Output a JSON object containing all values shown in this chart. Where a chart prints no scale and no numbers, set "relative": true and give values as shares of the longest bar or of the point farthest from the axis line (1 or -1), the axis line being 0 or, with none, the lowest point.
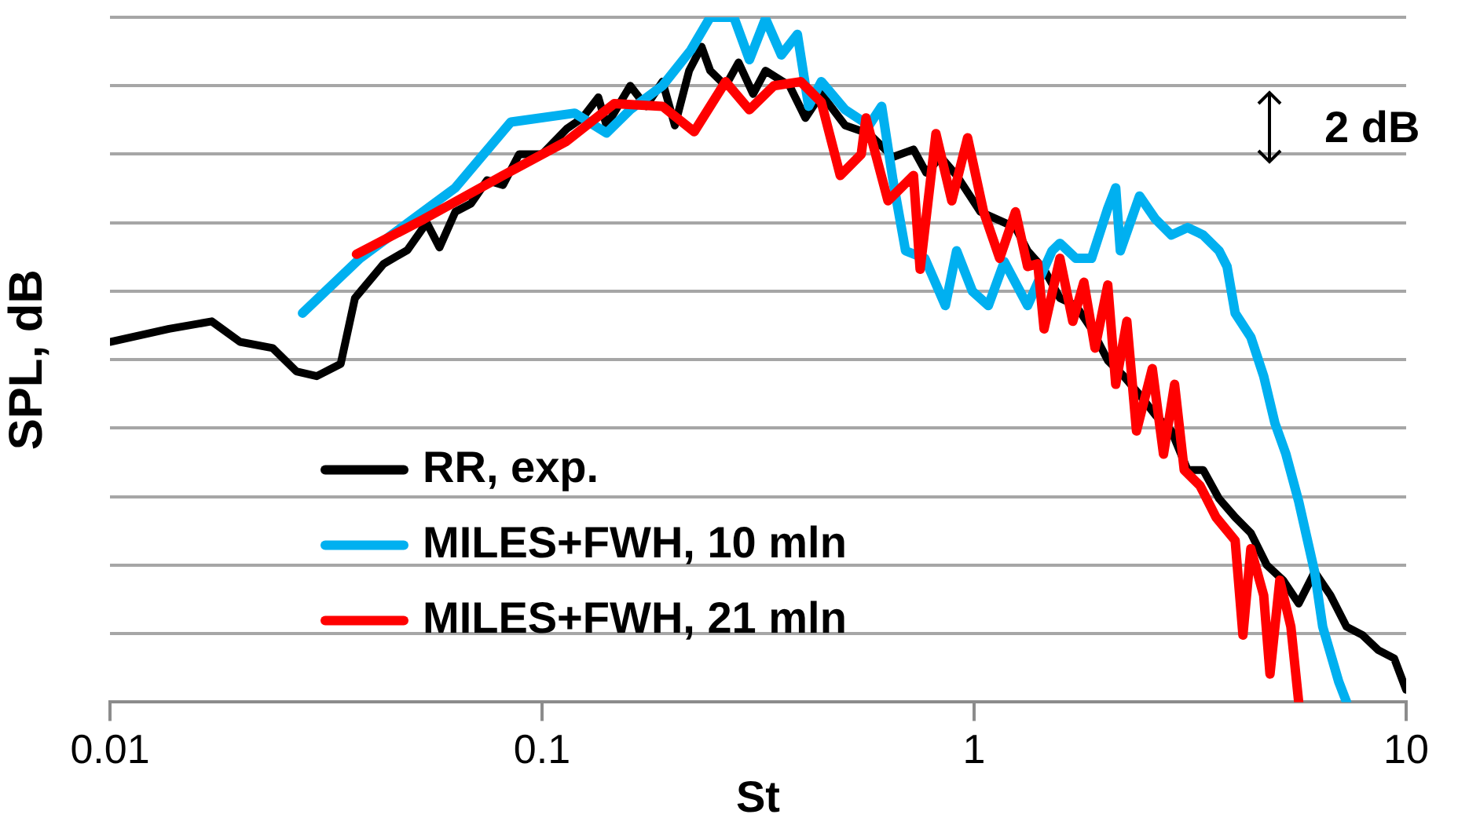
{
  "chart_data": {
    "type": "line",
    "xlabel": "St",
    "ylabel": "SPL, dB",
    "relative": true,
    "log": "x",
    "xlim": [
      0.01,
      10
    ],
    "xticks": [
      0.01,
      0.1,
      1,
      10
    ],
    "grid": "y",
    "legend": "bottom left",
    "marker": "none",
    "line_style": "solid",
    "annotations": [
      "2 dB"
    ],
    "series": [
      {
        "name": "RR, exp.",
        "color": "#000000",
        "x": [
          0.01,
          0.0137,
          0.0172,
          0.02,
          0.0238,
          0.027,
          0.0301,
          0.0342,
          0.0369,
          0.043,
          0.0488,
          0.0541,
          0.0579,
          0.063,
          0.0685,
          0.0746,
          0.0812,
          0.0885,
          0.1,
          0.114,
          0.124,
          0.135,
          0.141,
          0.16,
          0.174,
          0.19,
          0.203,
          0.219,
          0.234,
          0.245,
          0.266,
          0.285,
          0.308,
          0.329,
          0.374,
          0.407,
          0.443,
          0.503,
          0.571,
          0.649,
          0.724,
          0.775,
          0.837,
          0.911,
          1.034,
          1.13,
          1.247,
          1.33,
          1.452,
          1.58,
          1.72,
          1.87,
          2.039,
          2.22,
          2.415,
          2.63,
          2.862,
          3.12,
          3.39,
          3.69,
          4.02,
          4.37,
          4.76,
          5.19,
          5.64,
          6.14,
          6.68,
          7.28,
          7.92,
          8.62,
          9.38,
          10
        ],
        "values": [
          0.526,
          0.545,
          0.556,
          0.526,
          0.517,
          0.483,
          0.476,
          0.494,
          0.59,
          0.64,
          0.66,
          0.7,
          0.664,
          0.716,
          0.728,
          0.762,
          0.755,
          0.8,
          0.8,
          0.837,
          0.853,
          0.883,
          0.842,
          0.9,
          0.87,
          0.906,
          0.842,
          0.922,
          0.957,
          0.922,
          0.9,
          0.934,
          0.888,
          0.922,
          0.9,
          0.853,
          0.888,
          0.842,
          0.83,
          0.796,
          0.807,
          0.773,
          0.796,
          0.769,
          0.716,
          0.705,
          0.693,
          0.659,
          0.632,
          0.59,
          0.579,
          0.545,
          0.499,
          0.476,
          0.449,
          0.419,
          0.396,
          0.339,
          0.339,
          0.297,
          0.27,
          0.247,
          0.2,
          0.178,
          0.144,
          0.19,
          0.156,
          0.11,
          0.098,
          0.076,
          0.064,
          0.018
        ]
      },
      {
        "name": "MILES+FWH, 10 mln",
        "color": "#00b0f0",
        "x": [
          0.0279,
          0.0379,
          0.063,
          0.0847,
          0.119,
          0.141,
          0.16,
          0.19,
          0.221,
          0.245,
          0.278,
          0.302,
          0.329,
          0.358,
          0.39,
          0.414,
          0.443,
          0.503,
          0.571,
          0.611,
          0.649,
          0.694,
          0.769,
          0.858,
          0.911,
          0.991,
          1.079,
          1.175,
          1.33,
          1.515,
          1.58,
          1.72,
          1.87,
          2.039,
          2.127,
          2.18,
          2.415,
          2.63,
          2.862,
          3.12,
          3.39,
          3.69,
          3.85,
          4.02,
          4.37,
          4.68,
          4.97,
          5.27,
          5.64,
          6.14,
          6.41,
          6.98,
          7.28
        ],
        "values": [
          0.568,
          0.648,
          0.751,
          0.847,
          0.86,
          0.831,
          0.865,
          0.9,
          0.952,
          1,
          1,
          0.938,
          0.998,
          0.945,
          0.975,
          0.87,
          0.906,
          0.865,
          0.842,
          0.87,
          0.762,
          0.659,
          0.648,
          0.579,
          0.659,
          0.6,
          0.579,
          0.643,
          0.579,
          0.659,
          0.67,
          0.648,
          0.648,
          0.721,
          0.751,
          0.659,
          0.739,
          0.705,
          0.682,
          0.693,
          0.682,
          0.659,
          0.636,
          0.568,
          0.533,
          0.476,
          0.407,
          0.362,
          0.293,
          0.19,
          0.11,
          0.03,
          0
        ]
      },
      {
        "name": "MILES+FWH, 21 mln",
        "color": "#ff0000",
        "x": [
          0.0372,
          0.0532,
          0.0812,
          0.114,
          0.147,
          0.19,
          0.225,
          0.266,
          0.302,
          0.344,
          0.397,
          0.443,
          0.49,
          0.548,
          0.562,
          0.632,
          0.724,
          0.75,
          0.816,
          0.888,
          0.966,
          1.052,
          1.146,
          1.247,
          1.33,
          1.404,
          1.452,
          1.58,
          1.692,
          1.795,
          1.905,
          2.039,
          2.127,
          2.257,
          2.376,
          2.585,
          2.744,
          2.911,
          3.064,
          3.334,
          3.63,
          4.02,
          4.19,
          4.37,
          4.68,
          4.84,
          5.1,
          5.41,
          5.64
        ],
        "values": [
          0.654,
          0.705,
          0.769,
          0.819,
          0.874,
          0.87,
          0.833,
          0.906,
          0.865,
          0.9,
          0.906,
          0.876,
          0.769,
          0.8,
          0.853,
          0.732,
          0.769,
          0.632,
          0.83,
          0.732,
          0.824,
          0.716,
          0.648,
          0.716,
          0.636,
          0.64,
          0.545,
          0.648,
          0.556,
          0.613,
          0.517,
          0.609,
          0.464,
          0.556,
          0.396,
          0.487,
          0.362,
          0.464,
          0.339,
          0.316,
          0.27,
          0.236,
          0.098,
          0.224,
          0.156,
          0.041,
          0.178,
          0.11,
          0
        ]
      }
    ]
  }
}
